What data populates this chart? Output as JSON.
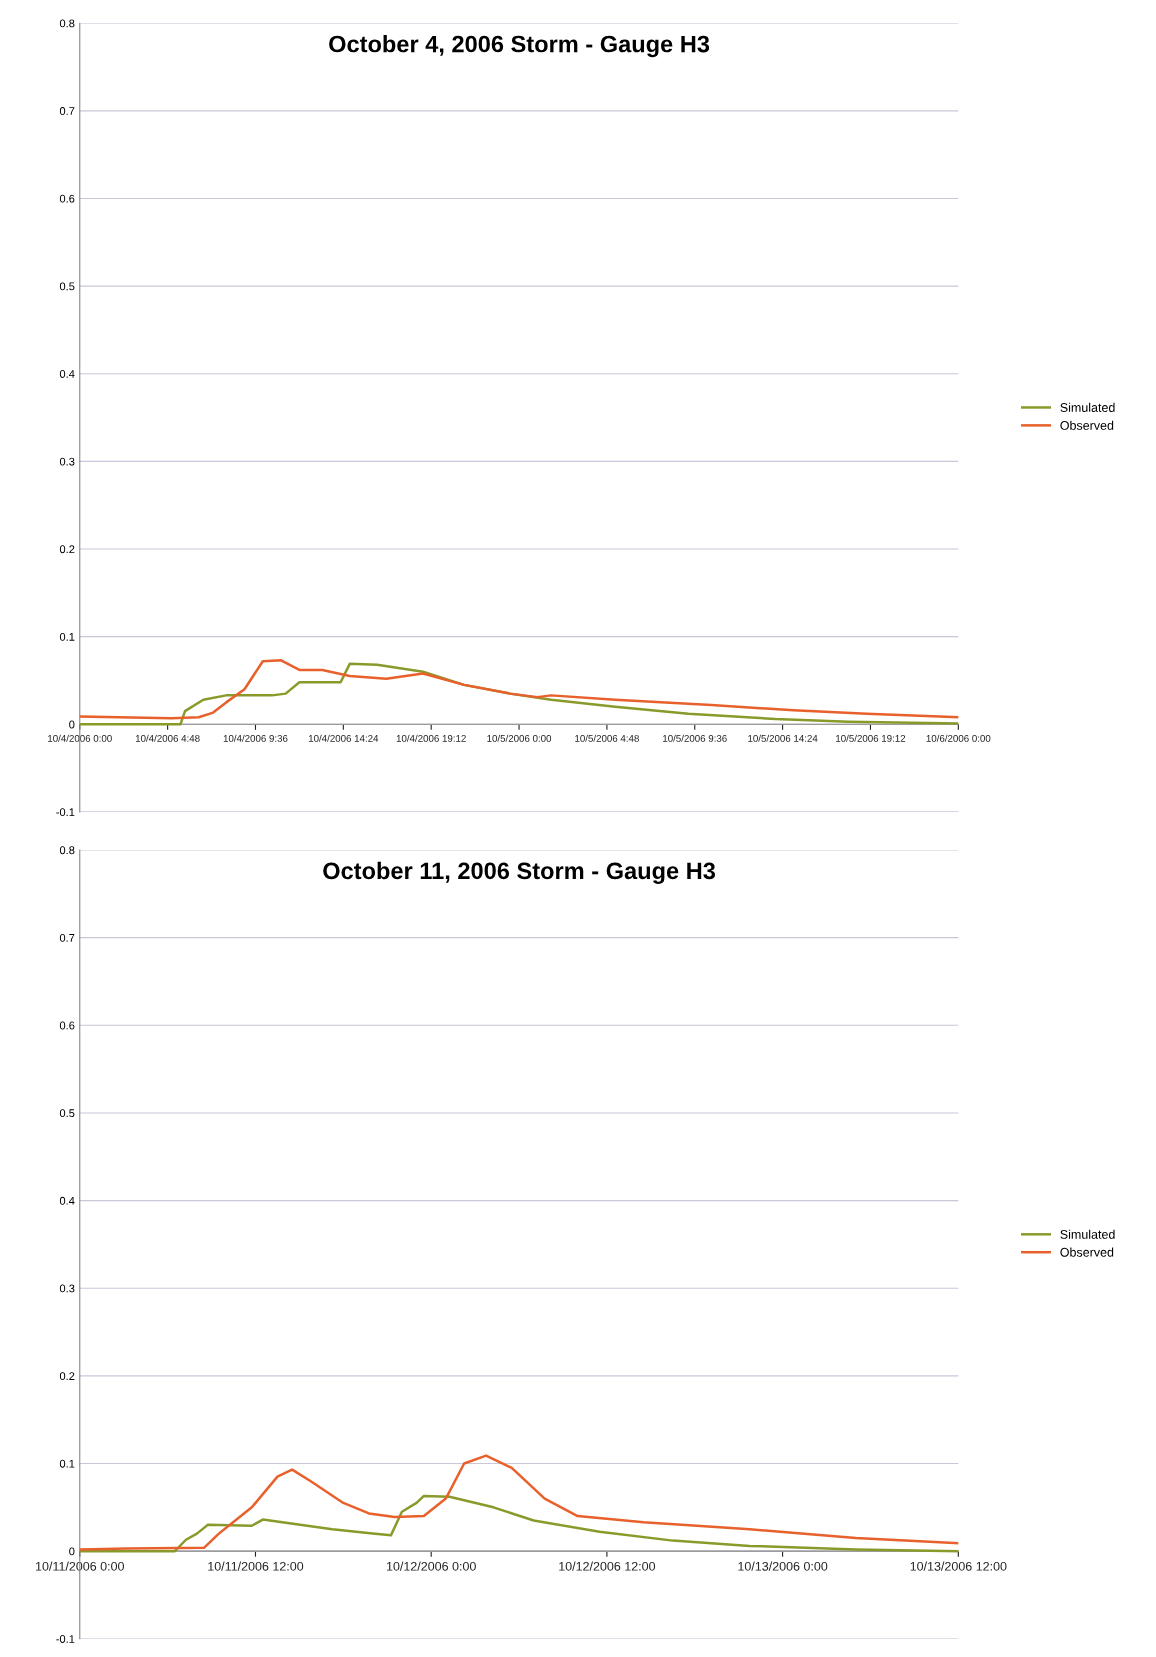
{
  "chart_data": [
    {
      "type": "line",
      "title": "October 4, 2006 Storm - Gauge H3",
      "legend": "right",
      "grid": "y",
      "xlim": [
        "2006-10-04T00:00",
        "2006-10-06T00:00"
      ],
      "xticks": [
        {
          "value": "2006-10-04T00:00",
          "label": "10/4/2006 0:00"
        },
        {
          "value": "2006-10-04T04:48",
          "label": "10/4/2006 4:48"
        },
        {
          "value": "2006-10-04T09:36",
          "label": "10/4/2006 9:36"
        },
        {
          "value": "2006-10-04T14:24",
          "label": "10/4/2006 14:24"
        },
        {
          "value": "2006-10-04T19:12",
          "label": "10/4/2006 19:12"
        },
        {
          "value": "2006-10-05T00:00",
          "label": "10/5/2006 0:00"
        },
        {
          "value": "2006-10-05T04:48",
          "label": "10/5/2006 4:48"
        },
        {
          "value": "2006-10-05T09:36",
          "label": "10/5/2006 9:36"
        },
        {
          "value": "2006-10-05T14:24",
          "label": "10/5/2006 14:24"
        },
        {
          "value": "2006-10-05T19:12",
          "label": "10/5/2006 19:12"
        },
        {
          "value": "2006-10-06T00:00",
          "label": "10/6/2006 0:00"
        }
      ],
      "ylim": [
        -0.1,
        0.8
      ],
      "yticks": [
        -0.1,
        0,
        0.1,
        0.2,
        0.3,
        0.4,
        0.5,
        0.6,
        0.7,
        0.8
      ],
      "series": [
        {
          "name": "Simulated",
          "color": "#8a9a2a",
          "x": [
            "2006-10-04T00:00",
            "2006-10-04T05:30",
            "2006-10-04T05:45",
            "2006-10-04T06:45",
            "2006-10-04T08:00",
            "2006-10-04T10:30",
            "2006-10-04T11:15",
            "2006-10-04T12:00",
            "2006-10-04T14:15",
            "2006-10-04T14:45",
            "2006-10-04T16:15",
            "2006-10-04T18:45",
            "2006-10-04T21:00",
            "2006-10-04T23:30",
            "2006-10-05T01:45",
            "2006-10-05T05:15",
            "2006-10-05T09:15",
            "2006-10-05T14:00",
            "2006-10-05T18:00",
            "2006-10-06T00:00"
          ],
          "values": [
            0,
            0,
            0.015,
            0.028,
            0.033,
            0.033,
            0.035,
            0.048,
            0.048,
            0.069,
            0.068,
            0.06,
            0.045,
            0.035,
            0.028,
            0.02,
            0.012,
            0.006,
            0.003,
            0.001
          ]
        },
        {
          "name": "Observed",
          "color": "#e8602c",
          "x": [
            "2006-10-04T00:00",
            "2006-10-04T05:00",
            "2006-10-04T06:30",
            "2006-10-04T07:15",
            "2006-10-04T08:00",
            "2006-10-04T09:00",
            "2006-10-04T10:00",
            "2006-10-04T11:00",
            "2006-10-04T12:00",
            "2006-10-04T13:15",
            "2006-10-04T14:45",
            "2006-10-04T16:45",
            "2006-10-04T18:45",
            "2006-10-04T21:00",
            "2006-10-04T23:30",
            "2006-10-05T01:00",
            "2006-10-05T01:45",
            "2006-10-05T05:15",
            "2006-10-05T10:30",
            "2006-10-05T15:00",
            "2006-10-05T19:00",
            "2006-10-06T00:00"
          ],
          "values": [
            0.009,
            0.007,
            0.008,
            0.013,
            0.025,
            0.04,
            0.072,
            0.073,
            0.062,
            0.062,
            0.055,
            0.052,
            0.058,
            0.045,
            0.035,
            0.031,
            0.033,
            0.028,
            0.022,
            0.016,
            0.012,
            0.008
          ]
        }
      ]
    },
    {
      "type": "line",
      "title": "October 11, 2006 Storm - Gauge H3",
      "legend": "right",
      "grid": "y",
      "xlim": [
        "2006-10-11T00:00",
        "2006-10-13T12:00"
      ],
      "xticks": [
        {
          "value": "2006-10-11T00:00",
          "label": "10/11/2006 0:00"
        },
        {
          "value": "2006-10-11T12:00",
          "label": "10/11/2006 12:00"
        },
        {
          "value": "2006-10-12T00:00",
          "label": "10/12/2006 0:00"
        },
        {
          "value": "2006-10-12T12:00",
          "label": "10/12/2006 12:00"
        },
        {
          "value": "2006-10-13T00:00",
          "label": "10/13/2006 0:00"
        },
        {
          "value": "2006-10-13T12:00",
          "label": "10/13/2006 12:00"
        }
      ],
      "ylim": [
        -0.1,
        0.8
      ],
      "yticks": [
        -0.1,
        0,
        0.1,
        0.2,
        0.3,
        0.4,
        0.5,
        0.6,
        0.7,
        0.8
      ],
      "series": [
        {
          "name": "Simulated",
          "color": "#8a9a2a",
          "x": [
            "2006-10-11T00:00",
            "2006-10-11T06:30",
            "2006-10-11T07:15",
            "2006-10-11T08:00",
            "2006-10-11T08:45",
            "2006-10-11T11:45",
            "2006-10-11T12:30",
            "2006-10-11T17:15",
            "2006-10-11T20:00",
            "2006-10-11T21:15",
            "2006-10-11T22:00",
            "2006-10-11T23:00",
            "2006-10-11T23:30",
            "2006-10-12T01:15",
            "2006-10-12T04:15",
            "2006-10-12T07:00",
            "2006-10-12T11:30",
            "2006-10-12T16:30",
            "2006-10-12T21:45",
            "2006-10-13T05:00",
            "2006-10-13T12:00"
          ],
          "values": [
            0,
            0,
            0.013,
            0.02,
            0.03,
            0.029,
            0.036,
            0.025,
            0.02,
            0.018,
            0.045,
            0.055,
            0.063,
            0.062,
            0.05,
            0.035,
            0.022,
            0.012,
            0.006,
            0.002,
            0
          ]
        },
        {
          "name": "Observed",
          "color": "#e8602c",
          "x": [
            "2006-10-11T00:00",
            "2006-10-11T03:15",
            "2006-10-11T08:30",
            "2006-10-11T09:30",
            "2006-10-11T11:45",
            "2006-10-11T13:30",
            "2006-10-11T14:30",
            "2006-10-11T15:45",
            "2006-10-11T18:00",
            "2006-10-11T19:45",
            "2006-10-11T21:30",
            "2006-10-11T23:30",
            "2006-10-12T01:00",
            "2006-10-12T02:15",
            "2006-10-12T03:45",
            "2006-10-12T05:30",
            "2006-10-12T07:45",
            "2006-10-12T10:00",
            "2006-10-12T14:30",
            "2006-10-12T21:45",
            "2006-10-13T05:00",
            "2006-10-13T12:00"
          ],
          "values": [
            0.002,
            0.003,
            0.004,
            0.02,
            0.05,
            0.085,
            0.093,
            0.08,
            0.055,
            0.043,
            0.039,
            0.04,
            0.06,
            0.1,
            0.109,
            0.095,
            0.06,
            0.04,
            0.033,
            0.025,
            0.015,
            0.009
          ]
        }
      ]
    }
  ]
}
